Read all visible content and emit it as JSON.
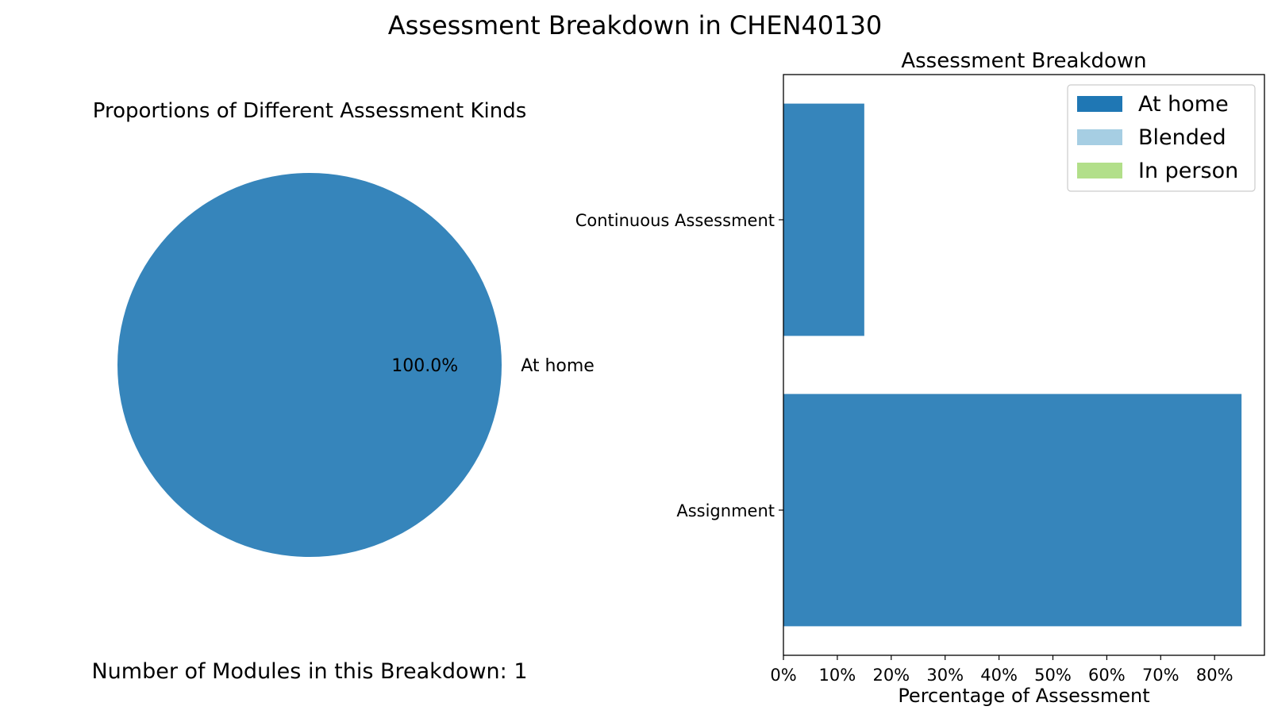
{
  "figure_title": "Assessment Breakdown in CHEN40130",
  "chart_data": [
    {
      "type": "pie",
      "title": "Proportions of Different Assessment Kinds",
      "slices": [
        {
          "label": "At home",
          "value": 100.0,
          "display": "100.0%",
          "color": "#3685bb"
        }
      ],
      "footnote": "Number of Modules in this Breakdown: 1"
    },
    {
      "type": "bar",
      "orientation": "horizontal",
      "stacked": true,
      "title": "Assessment Breakdown",
      "xlabel": "Percentage of Assessment",
      "ylabel": "",
      "categories": [
        "Continuous Assessment",
        "Assignment"
      ],
      "series": [
        {
          "name": "At home",
          "values": [
            15,
            85
          ],
          "color": "#3685bb",
          "legend_color": "#1f77b4"
        },
        {
          "name": "Blended",
          "values": [
            0,
            0
          ],
          "color": "#a6cee3"
        },
        {
          "name": "In person",
          "values": [
            0,
            0
          ],
          "color": "#b2df8a"
        }
      ],
      "xlim": [
        0,
        89.25
      ],
      "xticks": [
        0,
        10,
        20,
        30,
        40,
        50,
        60,
        70,
        80
      ],
      "xtick_labels": [
        "0%",
        "10%",
        "20%",
        "30%",
        "40%",
        "50%",
        "60%",
        "70%",
        "80%"
      ],
      "legend_position": "top-right",
      "grid": false
    }
  ]
}
